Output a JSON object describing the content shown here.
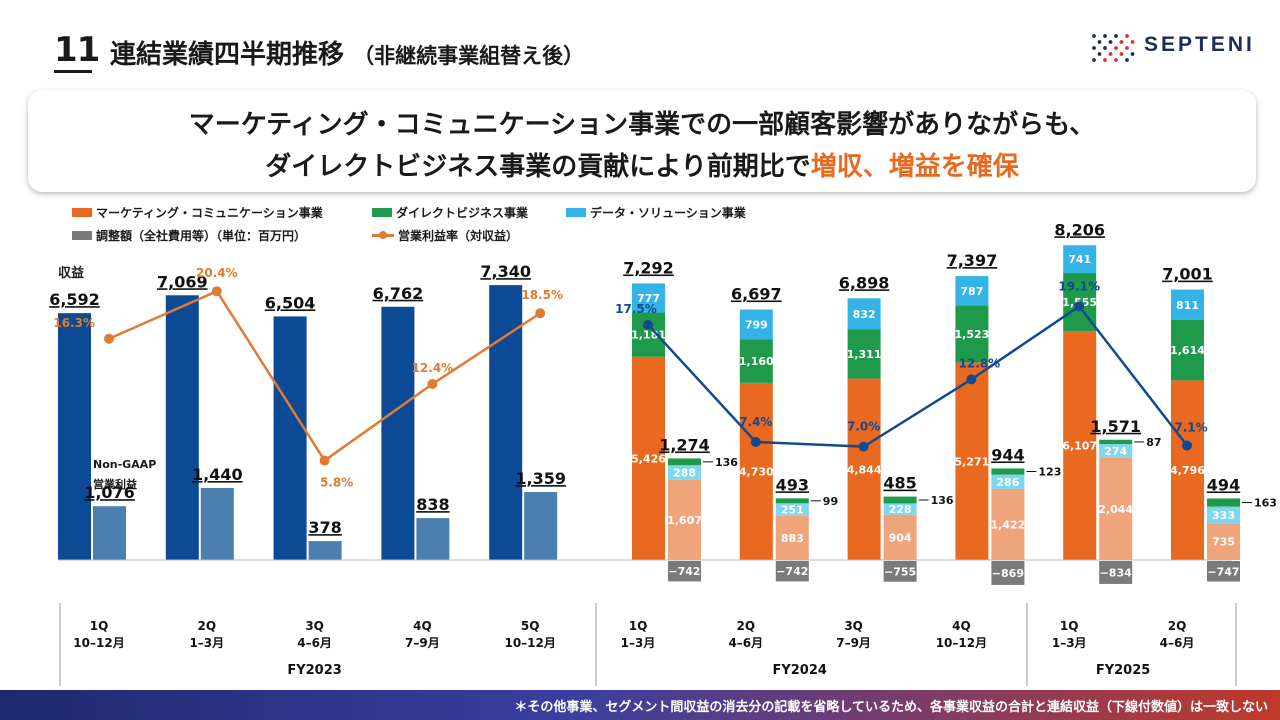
{
  "page_number": "11",
  "title": {
    "main": "連結業績四半期推移",
    "sub": "（非継続事業組替え後）"
  },
  "logo_text": "SEPTENI",
  "headline": {
    "line1": "マーケティング・コミュニケーション事業での一部顧客影響がありながらも、",
    "line2_prefix": "ダイレクトビジネス事業の貢献により前期比で",
    "line2_highlight": "増収、増益を確保"
  },
  "legend": {
    "marketing": "マーケティング・コミュニケーション事業",
    "direct": "ダイレクトビジネス事業",
    "data": "データ・ソリューション事業",
    "adjust": "調整額（全社費用等）（単位：百万円）",
    "margin": "営業利益率（対収益）"
  },
  "colors": {
    "revenue_fy23": "#0d4a96",
    "profit_fy23": "#4a7fb0",
    "marketing": "#e8691f",
    "direct": "#1f9a4a",
    "data": "#33b3e6",
    "mc_profit": "#f0a47c",
    "ds_profit": "#7fd6f0",
    "adjust": "#7a7a7a",
    "margin_fy23": "#e07b32",
    "margin_fy24": "#124a8f",
    "highlight": "#e8691f"
  },
  "annotations": {
    "revenue_label": "収益",
    "profit_label_1": "Non-GAAP",
    "profit_label_2": "営業利益"
  },
  "footer_note": "＊その他事業、セグメント間収益の消去分の記載を省略しているため、各事業収益の合計と連結収益（下線付数値）は一致しない",
  "chart_data": {
    "type": "bar",
    "quarters": [
      {
        "q": "1Q",
        "months": "10–12月",
        "fy": "FY2023"
      },
      {
        "q": "2Q",
        "months": "1–3月",
        "fy": "FY2023"
      },
      {
        "q": "3Q",
        "months": "4–6月",
        "fy": "FY2023"
      },
      {
        "q": "4Q",
        "months": "7–9月",
        "fy": "FY2023"
      },
      {
        "q": "5Q",
        "months": "10–12月",
        "fy": "FY2023"
      },
      {
        "q": "1Q",
        "months": "1–3月",
        "fy": "FY2024"
      },
      {
        "q": "2Q",
        "months": "4–6月",
        "fy": "FY2024"
      },
      {
        "q": "3Q",
        "months": "7–9月",
        "fy": "FY2024"
      },
      {
        "q": "4Q",
        "months": "10–12月",
        "fy": "FY2024"
      },
      {
        "q": "1Q",
        "months": "1–3月",
        "fy": "FY2025"
      },
      {
        "q": "2Q",
        "months": "4–6月",
        "fy": "FY2025"
      }
    ],
    "fiscal_years": [
      "FY2023",
      "FY2024",
      "FY2025"
    ],
    "revenue_total": [
      6592,
      7069,
      6504,
      6762,
      7340,
      7292,
      6697,
      6898,
      7397,
      8206,
      7001
    ],
    "revenue_segments": {
      "marketing": [
        null,
        null,
        null,
        null,
        null,
        5426,
        4730,
        4844,
        5271,
        6107,
        4796
      ],
      "direct": [
        null,
        null,
        null,
        null,
        null,
        1181,
        1160,
        1311,
        1523,
        1555,
        1614
      ],
      "data": [
        null,
        null,
        null,
        null,
        null,
        777,
        799,
        832,
        787,
        741,
        811
      ]
    },
    "profit_total": [
      1076,
      1440,
      378,
      838,
      1359,
      1274,
      493,
      485,
      944,
      1571,
      494
    ],
    "profit_segments": {
      "marketing": [
        null,
        null,
        null,
        null,
        null,
        1607,
        883,
        904,
        1422,
        2044,
        735
      ],
      "data": [
        null,
        null,
        null,
        null,
        null,
        288,
        251,
        228,
        286,
        274,
        333
      ],
      "direct": [
        null,
        null,
        null,
        null,
        null,
        136,
        99,
        136,
        123,
        87,
        163
      ],
      "adjustment": [
        null,
        null,
        null,
        null,
        null,
        -742,
        -742,
        -755,
        -869,
        -834,
        -747
      ]
    },
    "operating_margin": [
      16.3,
      20.4,
      5.8,
      12.4,
      18.5,
      17.5,
      7.4,
      7.0,
      12.8,
      19.1,
      7.1
    ],
    "margin_labels": [
      "16.3%",
      "20.4%",
      "5.8%",
      "12.4%",
      "18.5%",
      "17.5%",
      "7.4%",
      "7.0%",
      "12.8%",
      "19.1%",
      "7.1%"
    ]
  }
}
